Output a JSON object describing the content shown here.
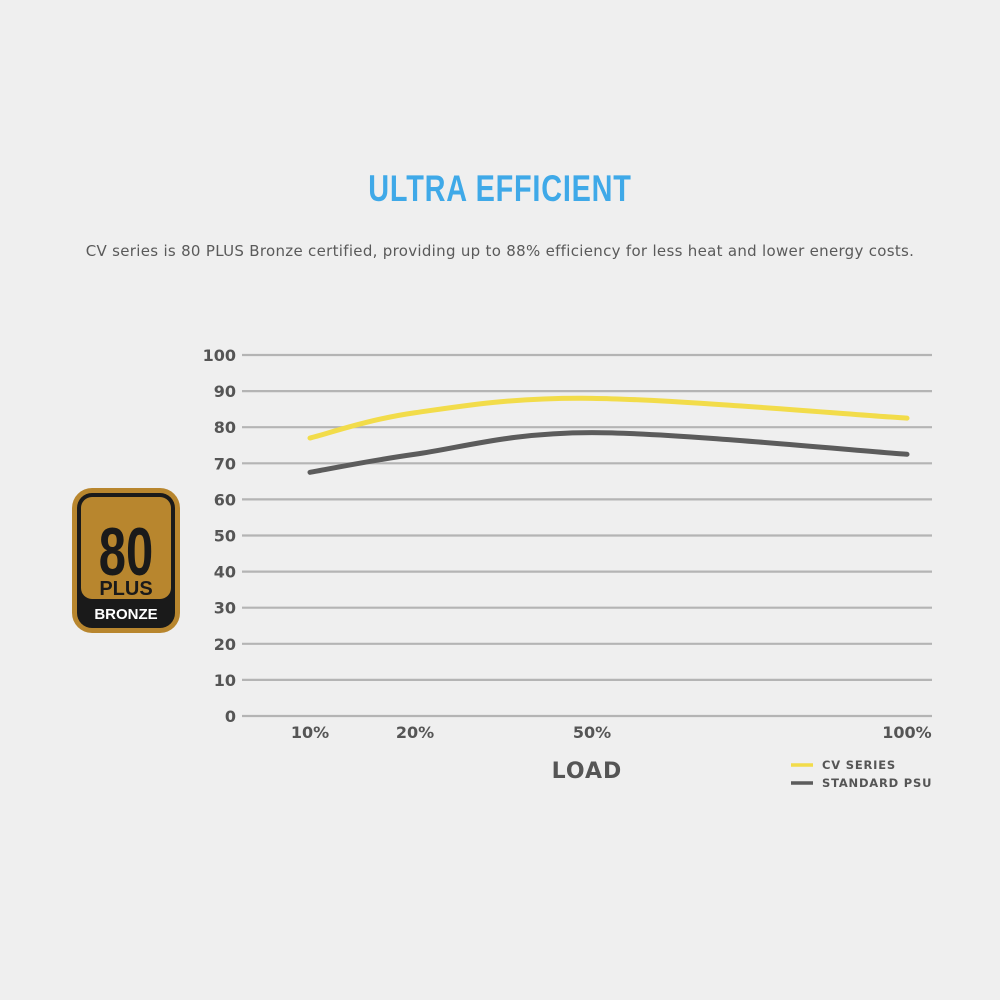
{
  "header": {
    "headline": "ULTRA EFFICIENT",
    "subtitle": "CV series is 80 PLUS Bronze certified, providing up to 88% efficiency for less heat and lower energy costs."
  },
  "badge": {
    "number": "80",
    "plus": "PLUS",
    "tier": "BRONZE",
    "colors": {
      "gold": "#b8862e",
      "dark": "#1a1a1a",
      "text": "#ffffff"
    }
  },
  "chart_data": {
    "type": "line",
    "title": "",
    "xlabel": "LOAD",
    "ylabel": "",
    "ylim": [
      0,
      100
    ],
    "yticks": [
      0,
      10,
      20,
      30,
      40,
      50,
      60,
      70,
      80,
      90,
      100
    ],
    "x": [
      10,
      20,
      50,
      100
    ],
    "xtick_labels": [
      "10%",
      "20%",
      "50%",
      "100%"
    ],
    "grid": true,
    "legend_position": "bottom-right",
    "series": [
      {
        "name": "CV SERIES",
        "color": "#f2dc4a",
        "values": [
          77,
          84,
          88,
          82.5
        ]
      },
      {
        "name": "STANDARD PSU",
        "color": "#5c5c5c",
        "values": [
          67.5,
          72.5,
          78.5,
          72.5
        ]
      }
    ]
  }
}
